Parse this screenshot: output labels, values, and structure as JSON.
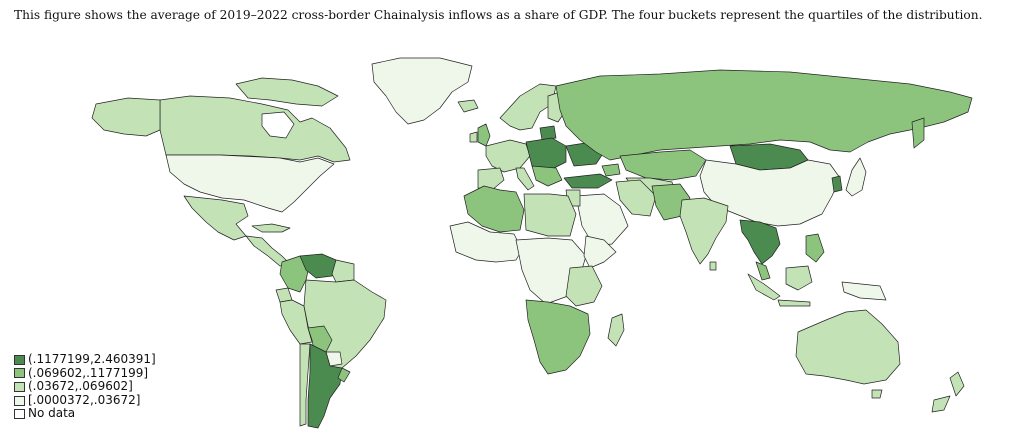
{
  "caption": "This figure shows the average of 2019–2022 cross-border Chainalysis inflows as a share of GDP. The four buckets represent the quartiles of the distribution.",
  "colors": {
    "q4": "#4b8b4f",
    "q3": "#8cc47d",
    "q2": "#c3e2b5",
    "q1": "#eef7e9",
    "nodata": "#ffffff",
    "border": "#222222"
  },
  "legend": [
    {
      "label": "(.1177199,2.460391]",
      "color_key": "q4"
    },
    {
      "label": "(.069602,.1177199]",
      "color_key": "q3"
    },
    {
      "label": "(.03672,.069602]",
      "color_key": "q2"
    },
    {
      "label": "[.0000372,.03672]",
      "color_key": "q1"
    },
    {
      "label": "No data",
      "color_key": "nodata"
    }
  ]
}
